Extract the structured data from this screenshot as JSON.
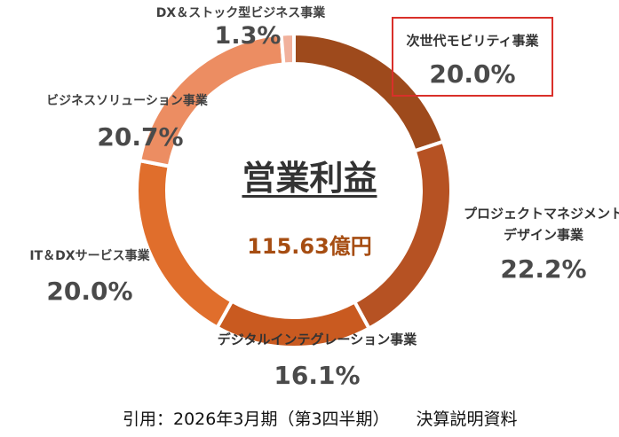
{
  "chart_data": {
    "type": "pie",
    "variant": "donut",
    "center_title": "営業利益",
    "center_value": "115.63億円",
    "categories": [
      "次世代モビリティ事業",
      "プロジェクトマネジメントデザイン事業",
      "デジタルインテグレーション事業",
      "IT＆DXサービス事業",
      "ビジネスソリューション事業",
      "DX＆ストック型ビジネス事業"
    ],
    "label_lines": [
      [
        "次世代モビリティ事業"
      ],
      [
        "プロジェクトマネジメント",
        "デザイン事業"
      ],
      [
        "デジタルインテグレーション事業"
      ],
      [
        "IT＆DXサービス事業"
      ],
      [
        "ビジネスソリューション事業"
      ],
      [
        "DX＆ストック型ビジネス事業"
      ]
    ],
    "values": [
      20.0,
      22.2,
      16.1,
      20.0,
      20.7,
      1.3
    ],
    "value_labels": [
      "20.0%",
      "22.2%",
      "16.1%",
      "20.0%",
      "20.7%",
      "1.3%"
    ],
    "colors": [
      "#9e4a1c",
      "#b65223",
      "#c95a20",
      "#e06e2c",
      "#ec8d62",
      "#f1b19c"
    ],
    "highlighted": "次世代モビリティ事業",
    "highlight_color": "#d9302a",
    "center_value_color": "#a64d12",
    "start": "12 o'clock",
    "direction": "clockwise"
  },
  "source_note": {
    "left": "引用：2026年3月期（第3四半期）",
    "right": "決算説明資料"
  }
}
